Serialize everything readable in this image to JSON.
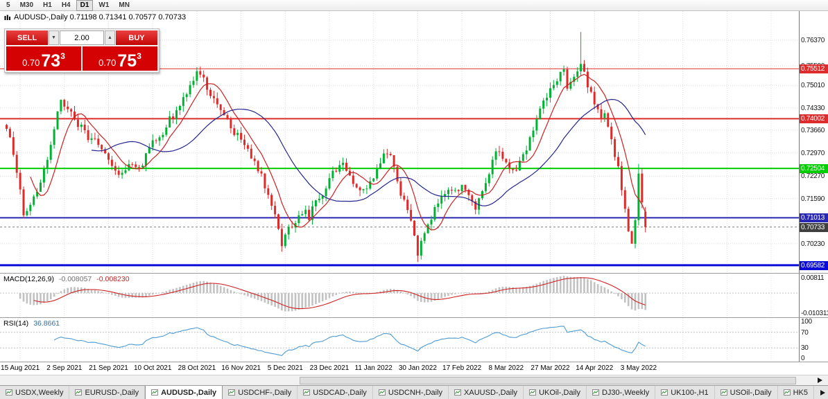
{
  "toolbar": {
    "timeframes": [
      "5",
      "M30",
      "H1",
      "H4",
      "D1",
      "W1",
      "MN"
    ],
    "active": "D1"
  },
  "chart": {
    "title": "AUDUSD-,Daily 0.71198 0.71341 0.70577 0.70733"
  },
  "trade_panel": {
    "sell_label": "SELL",
    "buy_label": "BUY",
    "volume": "2.00",
    "sell_price_small": "0.70",
    "sell_price_big": "73",
    "sell_price_sup": "3",
    "buy_price_small": "0.70",
    "buy_price_big": "75",
    "buy_price_sup": "3"
  },
  "chart_data": {
    "type": "candlestick",
    "symbol": "AUDUSD-,Daily",
    "ohlc_title": {
      "open": 0.71198,
      "high": 0.71341,
      "low": 0.70577,
      "close": 0.70733
    },
    "num_candles": 189,
    "y_min": 0.6935,
    "y_max": 0.7725,
    "up_color": "#00b232",
    "down_color": "#e02a2a",
    "price_ticks": [
      0.7637,
      0.7559,
      0.7501,
      0.7433,
      0.7366,
      0.7297,
      0.7227,
      0.7159,
      0.7023
    ],
    "levels": [
      {
        "price": 0.75512,
        "label": "0.75512",
        "color": "#dd2c2c",
        "width": 1
      },
      {
        "price": 0.74002,
        "label": "0.74002",
        "color": "#dd2c2c",
        "width": 2
      },
      {
        "price": 0.72504,
        "label": "0.72504",
        "color": "#00ce00",
        "width": 2
      },
      {
        "price": 0.71013,
        "label": "0.71013",
        "color": "#2828b4",
        "width": 2
      },
      {
        "price": 0.69582,
        "label": "0.69582",
        "color": "#0a0ad8",
        "width": 3
      }
    ],
    "current_price": {
      "value": 0.70733,
      "label": "0.70733",
      "badge_color": "#3f3f3f"
    },
    "last_candle": {
      "open": 0.71198,
      "high": 0.71341,
      "low": 0.70577,
      "close": 0.70733
    },
    "price_anchors": [
      [
        0,
        0.7378
      ],
      [
        3,
        0.725
      ],
      [
        5,
        0.7112
      ],
      [
        8,
        0.7165
      ],
      [
        11,
        0.7245
      ],
      [
        14,
        0.737
      ],
      [
        16,
        0.7455
      ],
      [
        18,
        0.7428
      ],
      [
        20,
        0.7398
      ],
      [
        23,
        0.7358
      ],
      [
        26,
        0.733
      ],
      [
        30,
        0.7282
      ],
      [
        33,
        0.7238
      ],
      [
        36,
        0.7262
      ],
      [
        39,
        0.7248
      ],
      [
        43,
        0.7325
      ],
      [
        46,
        0.7362
      ],
      [
        49,
        0.7412
      ],
      [
        52,
        0.747
      ],
      [
        54,
        0.7502
      ],
      [
        56,
        0.7545
      ],
      [
        58,
        0.7512
      ],
      [
        60,
        0.7478
      ],
      [
        62,
        0.744
      ],
      [
        64,
        0.7408
      ],
      [
        66,
        0.7372
      ],
      [
        69,
        0.734
      ],
      [
        71,
        0.7298
      ],
      [
        73,
        0.7268
      ],
      [
        75,
        0.723
      ],
      [
        77,
        0.716
      ],
      [
        79,
        0.7105
      ],
      [
        81,
        0.7022
      ],
      [
        83,
        0.7062
      ],
      [
        85,
        0.7095
      ],
      [
        87,
        0.712
      ],
      [
        89,
        0.7108
      ],
      [
        92,
        0.716
      ],
      [
        95,
        0.7218
      ],
      [
        97,
        0.7245
      ],
      [
        99,
        0.7255
      ],
      [
        101,
        0.7228
      ],
      [
        103,
        0.7192
      ],
      [
        105,
        0.7178
      ],
      [
        108,
        0.7212
      ],
      [
        110,
        0.7275
      ],
      [
        112,
        0.7305
      ],
      [
        114,
        0.7262
      ],
      [
        116,
        0.718
      ],
      [
        118,
        0.712
      ],
      [
        120,
        0.7045
      ],
      [
        121,
        0.6992
      ],
      [
        123,
        0.7048
      ],
      [
        125,
        0.7108
      ],
      [
        127,
        0.7142
      ],
      [
        129,
        0.717
      ],
      [
        131,
        0.7188
      ],
      [
        134,
        0.7196
      ],
      [
        136,
        0.7162
      ],
      [
        138,
        0.713
      ],
      [
        140,
        0.7178
      ],
      [
        142,
        0.7242
      ],
      [
        144,
        0.73
      ],
      [
        146,
        0.7282
      ],
      [
        148,
        0.725
      ],
      [
        150,
        0.7248
      ],
      [
        152,
        0.7285
      ],
      [
        154,
        0.734
      ],
      [
        156,
        0.7402
      ],
      [
        158,
        0.7458
      ],
      [
        160,
        0.7495
      ],
      [
        162,
        0.7524
      ],
      [
        164,
        0.7538
      ],
      [
        165,
        0.7492
      ],
      [
        167,
        0.7515
      ],
      [
        169,
        0.7572
      ],
      [
        170,
        0.7538
      ],
      [
        171,
        0.7492
      ],
      [
        173,
        0.7448
      ],
      [
        175,
        0.7402
      ],
      [
        176,
        0.742
      ],
      [
        178,
        0.7338
      ],
      [
        180,
        0.7252
      ],
      [
        182,
        0.7138
      ],
      [
        183,
        0.7062
      ],
      [
        184,
        0.7032
      ],
      [
        185,
        0.7088
      ],
      [
        186,
        0.723
      ],
      [
        187,
        0.7148
      ],
      [
        188,
        0.70733
      ]
    ],
    "high_overrides": [
      [
        56,
        0.7556
      ],
      [
        169,
        0.7662
      ],
      [
        186,
        0.7264
      ]
    ],
    "low_overrides": [
      [
        5,
        0.71
      ],
      [
        81,
        0.6999
      ],
      [
        121,
        0.6968
      ],
      [
        184,
        0.7028
      ]
    ],
    "date_ticks": [
      {
        "index": 4,
        "label": "15 Aug 2021"
      },
      {
        "index": 17,
        "label": "2 Sep 2021"
      },
      {
        "index": 30,
        "label": "21 Sep 2021"
      },
      {
        "index": 43,
        "label": "10 Oct 2021"
      },
      {
        "index": 56,
        "label": "28 Oct 2021"
      },
      {
        "index": 69,
        "label": "16 Nov 2021"
      },
      {
        "index": 82,
        "label": "5 Dec 2021"
      },
      {
        "index": 95,
        "label": "23 Dec 2021"
      },
      {
        "index": 108,
        "label": "11 Jan 2022"
      },
      {
        "index": 121,
        "label": "30 Jan 2022"
      },
      {
        "index": 134,
        "label": "17 Feb 2022"
      },
      {
        "index": 147,
        "label": "8 Mar 2022"
      },
      {
        "index": 160,
        "label": "27 Mar 2022"
      },
      {
        "index": 173,
        "label": "14 Apr 2022"
      },
      {
        "index": 186,
        "label": "3 May 2022"
      }
    ],
    "ma_lines": [
      {
        "period": 8,
        "color": "#cc2020"
      },
      {
        "period": 26,
        "color": "#24248f"
      }
    ],
    "macd": {
      "label": "MACD(12,26,9)",
      "value_main": "-0.008057",
      "value_signal": "-0.008230",
      "params": [
        12,
        26,
        9
      ],
      "axis_max_label": "0.00811",
      "axis_min_label": "-0.010311",
      "range": [
        -0.0118,
        0.0095
      ],
      "hist_color": "#c2c2c2",
      "signal_color": "#cf2020"
    },
    "rsi": {
      "label": "RSI(14)",
      "value": "36.8661",
      "period": 14,
      "axis_labels": [
        100,
        70,
        30,
        0
      ],
      "guide_levels": [
        70,
        30
      ],
      "line_color": "#4d9bd5"
    }
  },
  "scrollbar": {
    "present": true
  },
  "tabs": {
    "items": [
      "USDX,Weekly",
      "EURUSD-,Daily",
      "AUDUSD-,Daily",
      "USDCHF-,Daily",
      "USDCAD-,Daily",
      "USDCNH-,Daily",
      "XAUUSD-,Daily",
      "UKOil-,Daily",
      "DJ30-,Weekly",
      "UK100-,H1",
      "USOil-,Daily",
      "HK5"
    ],
    "active_index": 2
  }
}
